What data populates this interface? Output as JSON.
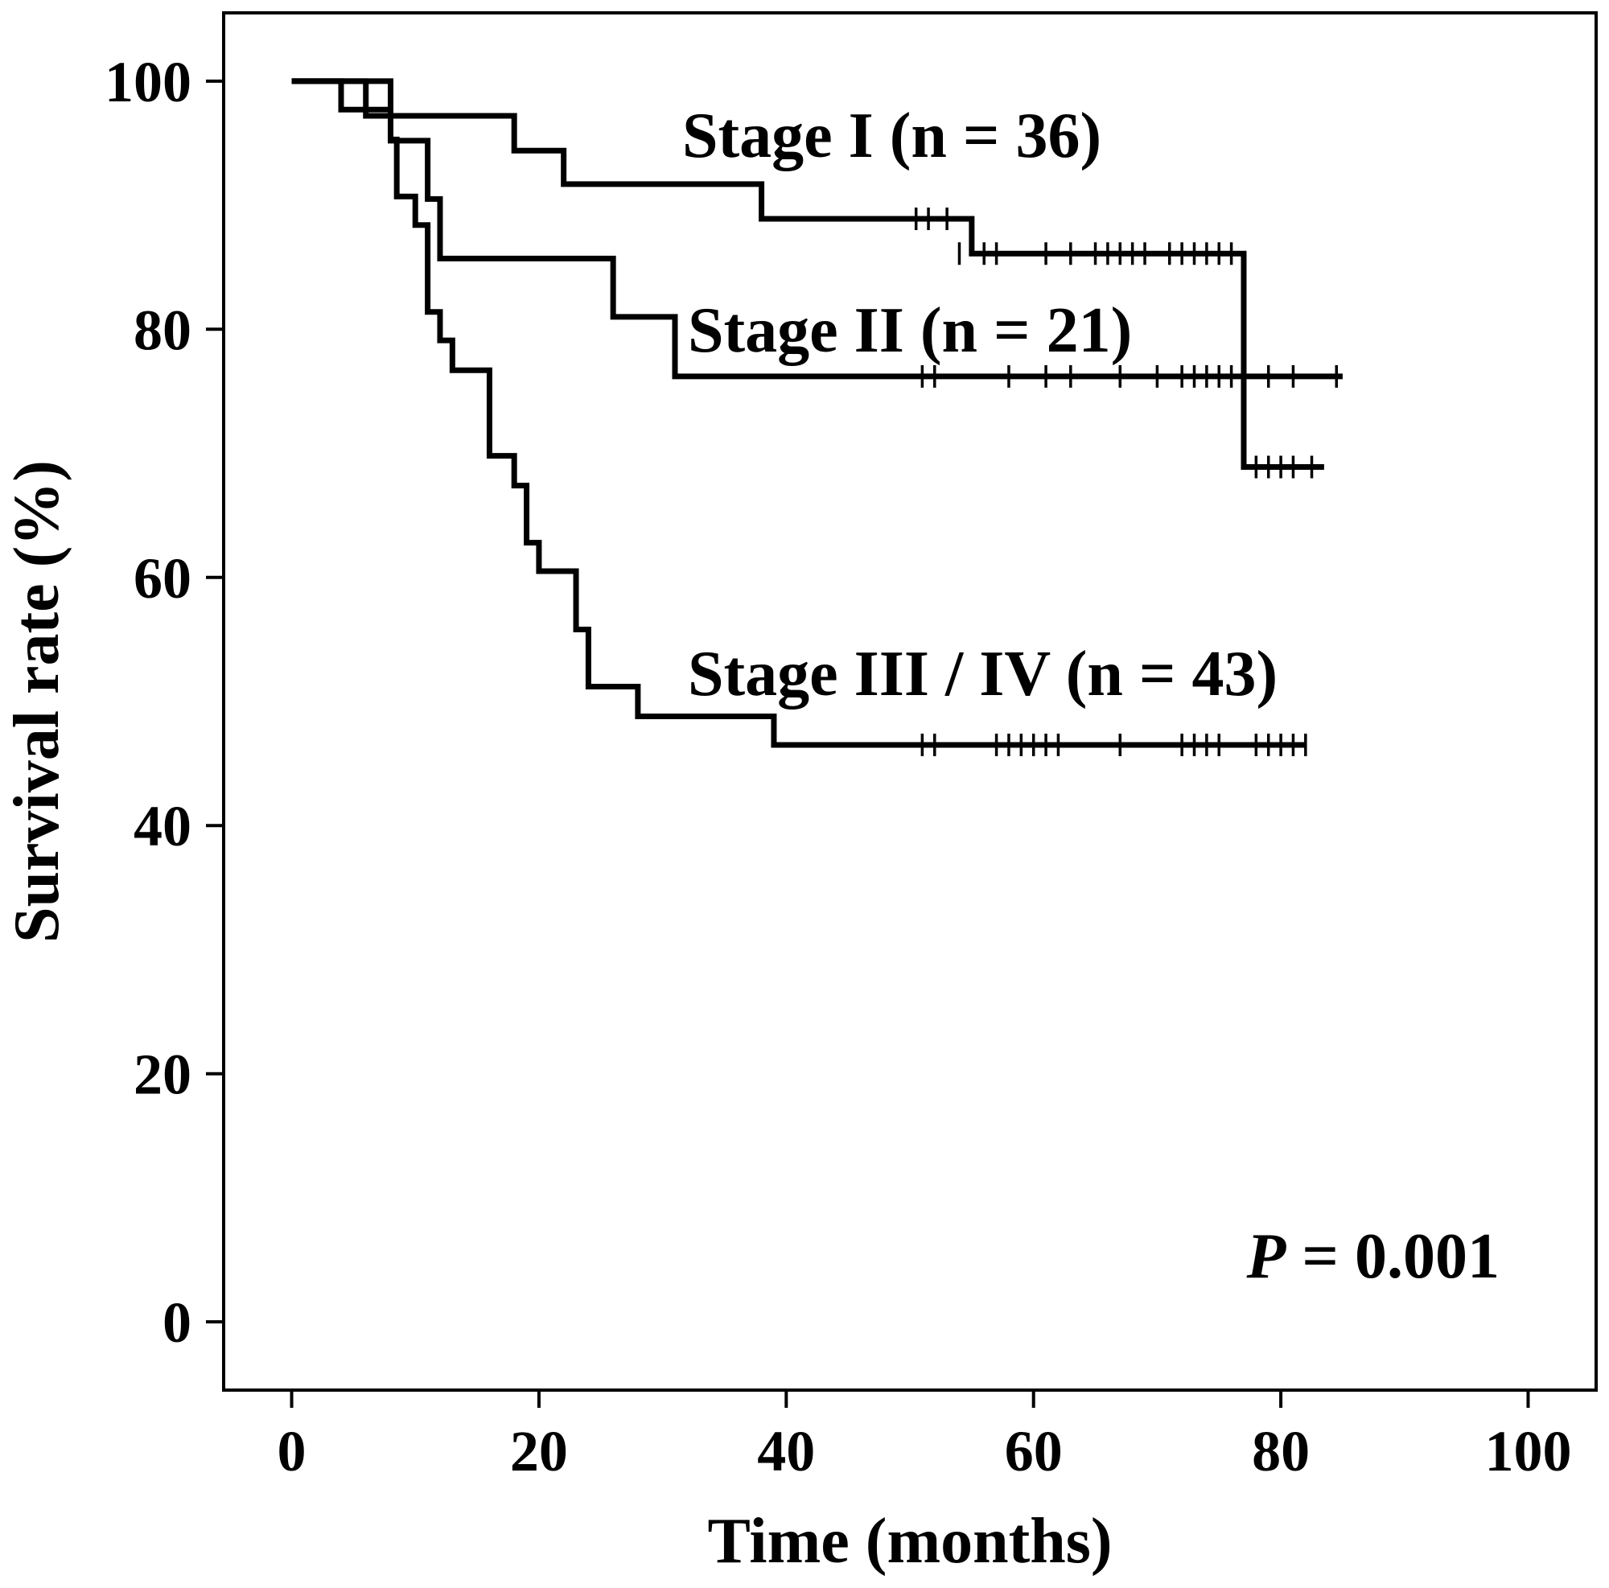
{
  "chart_data": {
    "type": "line",
    "subtype": "kaplan-meier",
    "xlabel": "Time (months)",
    "ylabel": "Survival rate (%)",
    "xlim": [
      -5.5,
      105.5
    ],
    "ylim": [
      -5.5,
      105.5
    ],
    "xticks": [
      0,
      20,
      40,
      60,
      80,
      100
    ],
    "yticks": [
      0,
      20,
      40,
      60,
      80,
      100
    ],
    "grid": false,
    "annotation": {
      "italic": "P",
      "rest": " = 0.001"
    },
    "series": [
      {
        "name": "Stage I (n = 36)",
        "color": "#000000",
        "steps": [
          [
            0,
            100
          ],
          [
            6,
            97.2
          ],
          [
            18,
            94.4
          ],
          [
            22,
            91.7
          ],
          [
            38,
            88.9
          ],
          [
            55,
            86.1
          ],
          [
            77,
            68.9
          ],
          [
            83.5,
            68.9
          ]
        ],
        "censored": [
          [
            50.5,
            88.9
          ],
          [
            51.5,
            88.9
          ],
          [
            53,
            88.9
          ],
          [
            54,
            86.1
          ],
          [
            56,
            86.1
          ],
          [
            57,
            86.1
          ],
          [
            61,
            86.1
          ],
          [
            63,
            86.1
          ],
          [
            65,
            86.1
          ],
          [
            66,
            86.1
          ],
          [
            67,
            86.1
          ],
          [
            68,
            86.1
          ],
          [
            69,
            86.1
          ],
          [
            71,
            86.1
          ],
          [
            72,
            86.1
          ],
          [
            73,
            86.1
          ],
          [
            74,
            86.1
          ],
          [
            75,
            86.1
          ],
          [
            76,
            86.1
          ],
          [
            78,
            68.9
          ],
          [
            79,
            68.9
          ],
          [
            80,
            68.9
          ],
          [
            81,
            68.9
          ],
          [
            82.5,
            68.9
          ]
        ]
      },
      {
        "name": "Stage II (n = 21)",
        "color": "#000000",
        "steps": [
          [
            0,
            100
          ],
          [
            8,
            95.2
          ],
          [
            11,
            90.5
          ],
          [
            12,
            85.7
          ],
          [
            26,
            81
          ],
          [
            31,
            76.2
          ],
          [
            85,
            76.2
          ]
        ],
        "censored": [
          [
            51,
            76.2
          ],
          [
            52,
            76.2
          ],
          [
            58,
            76.2
          ],
          [
            61,
            76.2
          ],
          [
            63,
            76.2
          ],
          [
            67,
            76.2
          ],
          [
            70,
            76.2
          ],
          [
            72,
            76.2
          ],
          [
            73,
            76.2
          ],
          [
            74,
            76.2
          ],
          [
            75,
            76.2
          ],
          [
            76,
            76.2
          ],
          [
            79,
            76.2
          ],
          [
            81,
            76.2
          ],
          [
            84.5,
            76.2
          ]
        ]
      },
      {
        "name": "Stage III / IV (n = 43)",
        "color": "#000000",
        "steps": [
          [
            0,
            100
          ],
          [
            4,
            97.7
          ],
          [
            8,
            95.3
          ],
          [
            8.5,
            90.7
          ],
          [
            10,
            88.4
          ],
          [
            11,
            81.4
          ],
          [
            12,
            79.1
          ],
          [
            13,
            76.7
          ],
          [
            16,
            69.8
          ],
          [
            18,
            67.4
          ],
          [
            19,
            62.8
          ],
          [
            20,
            60.5
          ],
          [
            23,
            55.8
          ],
          [
            24,
            51.2
          ],
          [
            28,
            48.8
          ],
          [
            39,
            46.5
          ],
          [
            82,
            46.5
          ]
        ],
        "censored": [
          [
            51,
            46.5
          ],
          [
            52,
            46.5
          ],
          [
            57,
            46.5
          ],
          [
            58,
            46.5
          ],
          [
            59,
            46.5
          ],
          [
            60,
            46.5
          ],
          [
            61,
            46.5
          ],
          [
            62,
            46.5
          ],
          [
            67,
            46.5
          ],
          [
            72,
            46.5
          ],
          [
            73,
            46.5
          ],
          [
            74,
            46.5
          ],
          [
            75,
            46.5
          ],
          [
            78,
            46.5
          ],
          [
            79,
            46.5
          ],
          [
            80,
            46.5
          ],
          [
            81,
            46.5
          ],
          [
            82,
            46.5
          ]
        ]
      }
    ]
  }
}
